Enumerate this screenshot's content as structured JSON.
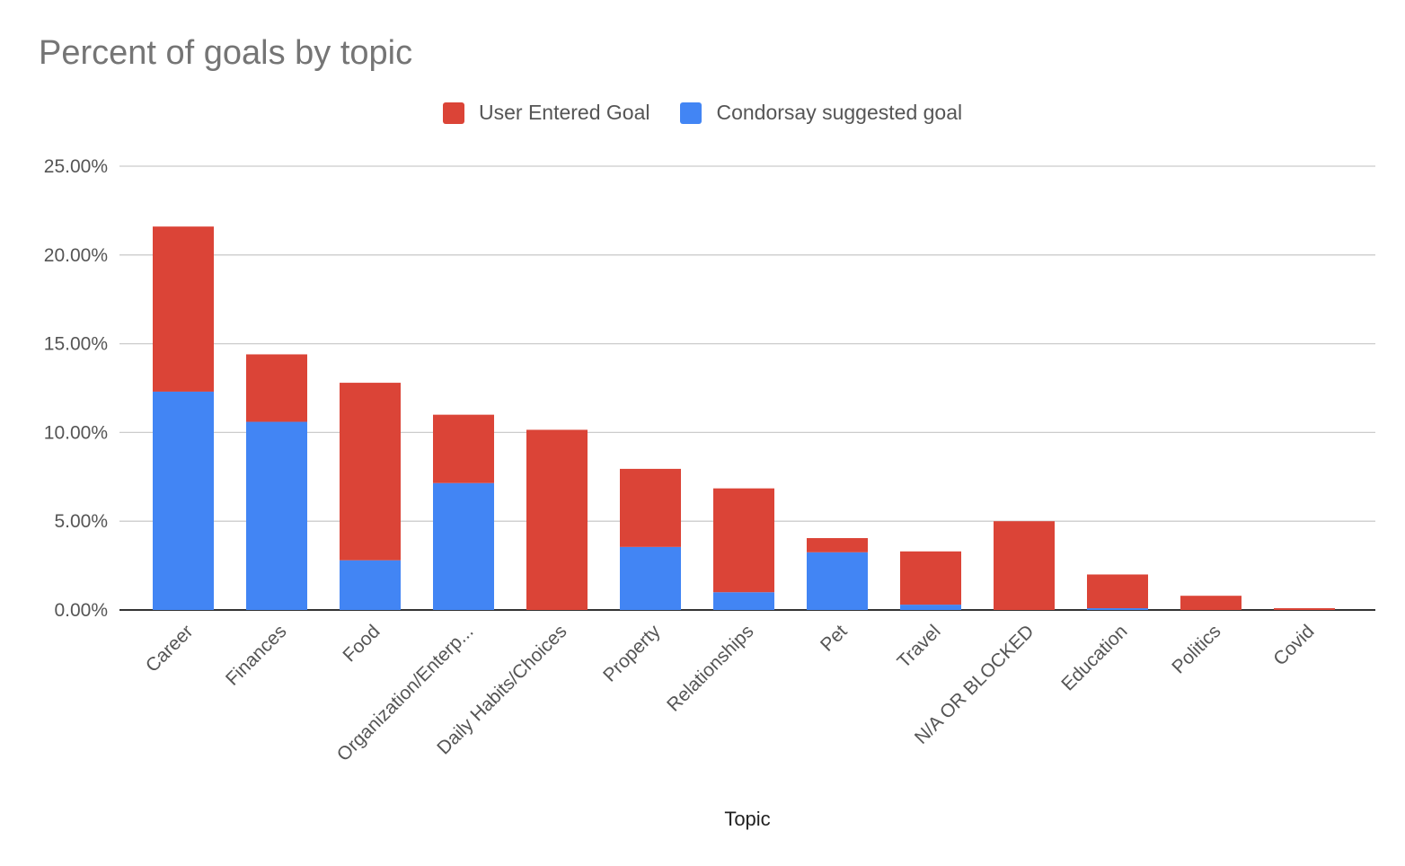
{
  "chart_data": {
    "type": "bar",
    "stacked": true,
    "title": "Percent of goals by topic",
    "xlabel": "Topic",
    "ylabel": "",
    "ylim": [
      0,
      25
    ],
    "yticks": [
      "0.00%",
      "5.00%",
      "10.00%",
      "15.00%",
      "20.00%",
      "25.00%"
    ],
    "grid": true,
    "legend_position": "top",
    "categories": [
      "Career",
      "Finances",
      "Food",
      "Organization/Enterp...",
      "Daily Habits/Choices",
      "Property",
      "Relationships",
      "Pet",
      "Travel",
      "N/A OR BLOCKED",
      "Education",
      "Politics",
      "Covid"
    ],
    "series": [
      {
        "name": "Condorsay suggested goal",
        "color": "#4285f4",
        "values": [
          12.3,
          10.6,
          2.8,
          7.15,
          0,
          3.55,
          1.0,
          3.25,
          0.3,
          0,
          0.1,
          0,
          0
        ]
      },
      {
        "name": "User Entered Goal",
        "color": "#db4437",
        "values": [
          9.3,
          3.8,
          10.0,
          3.85,
          10.15,
          4.4,
          5.85,
          0.8,
          3.0,
          5.0,
          1.9,
          0.8,
          0.1
        ]
      }
    ],
    "legend_order": [
      "User Entered Goal",
      "Condorsay suggested goal"
    ]
  }
}
